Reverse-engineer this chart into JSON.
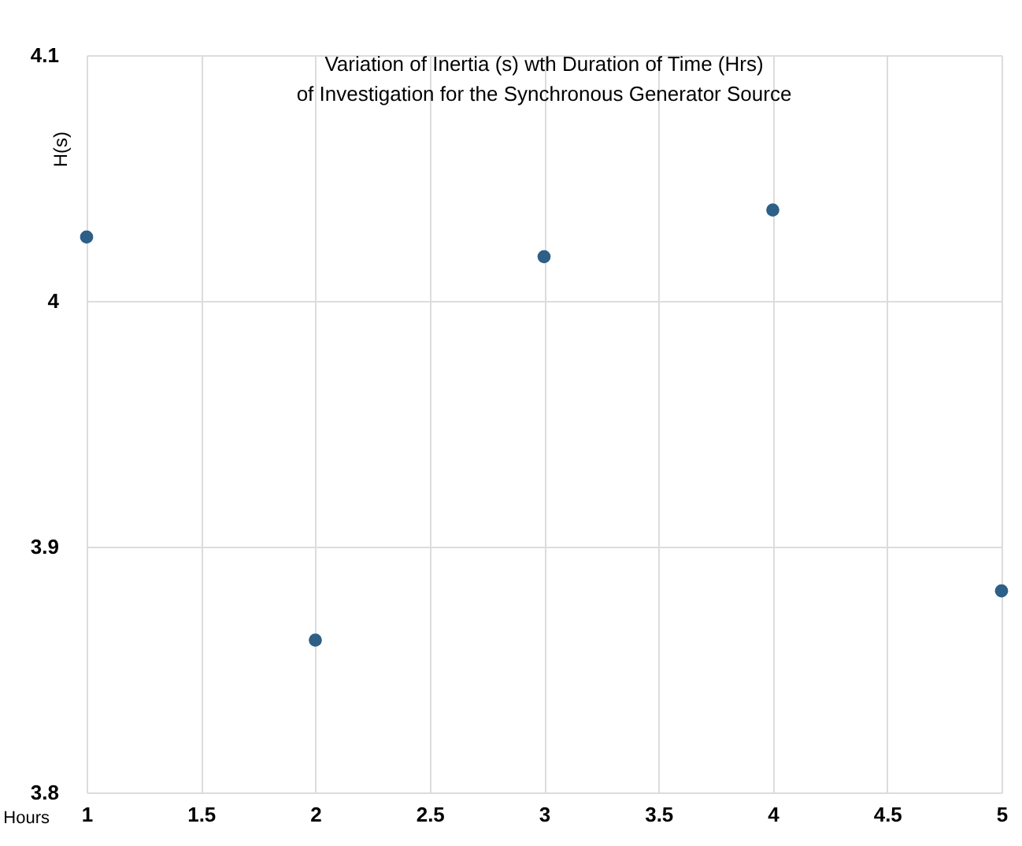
{
  "chart_data": {
    "type": "scatter",
    "title": "Variation of Inertia (s) wth Duration of Time (Hrs) of Investigation for the Synchronous Generator Source",
    "xlabel": "Hours",
    "ylabel": "H(s)",
    "x": [
      1,
      2,
      3,
      4,
      5
    ],
    "series": [
      {
        "color": "#2d5f87",
        "values": [
          4.026,
          3.862,
          4.018,
          4.037,
          3.882
        ]
      }
    ],
    "xlim": [
      1,
      5
    ],
    "xticks": [
      1,
      1.5,
      2,
      2.5,
      3,
      3.5,
      4,
      4.5,
      5
    ],
    "ylim": [
      3.8,
      4.1
    ],
    "yticks": [
      3.8,
      3.9,
      4,
      4.1
    ],
    "grid": true,
    "marker": "circle"
  }
}
